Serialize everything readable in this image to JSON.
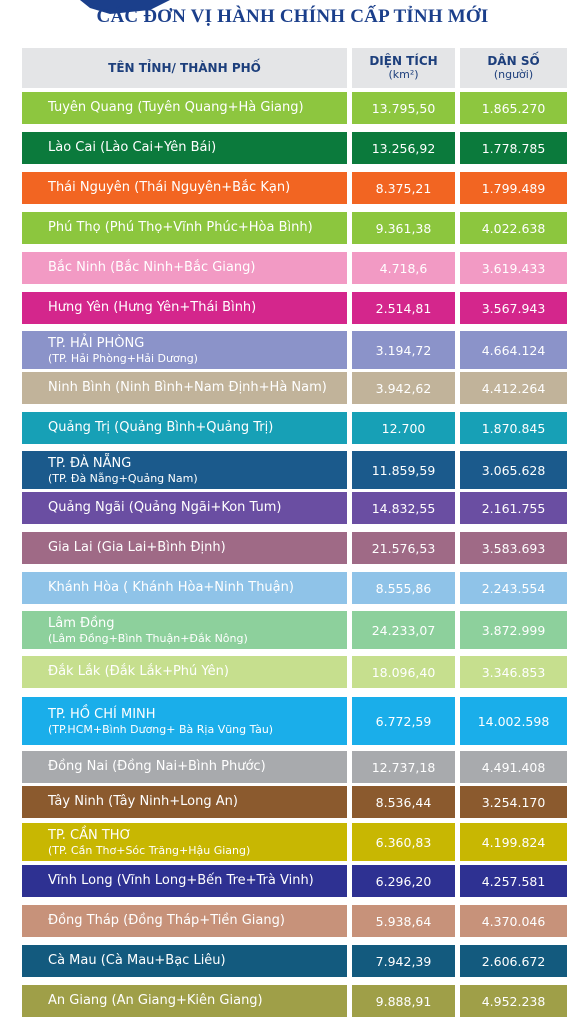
{
  "header": {
    "title": "CÁC ĐƠN VỊ HÀNH CHÍNH CẤP TỈNH MỚI"
  },
  "table": {
    "headers": [
      "TÊN TỈNH/ THÀNH PHỐ",
      "DIỆN TÍCH",
      "DÂN SỐ"
    ],
    "header_units": [
      "(km²)",
      "(người)"
    ],
    "rows": [
      {
        "name": "Tuyên Quang (Tuyên Quang+Hà Giang)",
        "area": "13.795,50",
        "population": "1.865.270",
        "color": "#8dc63f"
      },
      {
        "name": "Lào Cai (Lào Cai+Yên Bái)",
        "area": "13.256,92",
        "population": "1.778.785",
        "color": "#0b7a3c"
      },
      {
        "name": "Thái Nguyên (Thái Nguyên+Bắc Kạn)",
        "area": "8.375,21",
        "population": "1.799.489",
        "color": "#f26522"
      },
      {
        "name": "Phú Thọ (Phú Thọ+Vĩnh Phúc+Hòa Bình)",
        "area": "9.361,38",
        "population": "4.022.638",
        "color": "#8cc63e"
      },
      {
        "name": "Bắc Ninh (Bắc Ninh+Bắc Giang)",
        "area": "4.718,6",
        "population": "3.619.433",
        "color": "#f29ac4"
      },
      {
        "name": "Hưng Yên (Hưng Yên+Thái Bình)",
        "area": "2.514,81",
        "population": "3.567.943",
        "color": "#d4268c"
      },
      {
        "name": "TP. HẢI PHÒNG",
        "sub": "(TP. Hải Phòng+Hải Dương)",
        "area": "3.194,72",
        "population": "4.664.124",
        "color": "#8b93c9"
      },
      {
        "name": "Ninh Bình (Ninh Bình+Nam Định+Hà Nam)",
        "area": "3.942,62",
        "population": "4.412.264",
        "color": "#c1b39a"
      },
      {
        "name": "Quảng Trị (Quảng Bình+Quảng Trị)",
        "area": "12.700",
        "population": "1.870.845",
        "color": "#17a0b6"
      },
      {
        "name": "TP. ĐÀ NẴNG",
        "sub": "(TP. Đà Nẵng+Quảng Nam)",
        "area": "11.859,59",
        "population": "3.065.628",
        "color": "#1b5a8c"
      },
      {
        "name": "Quảng Ngãi (Quảng Ngãi+Kon Tum)",
        "area": "14.832,55",
        "population": "2.161.755",
        "color": "#6a4ea2"
      },
      {
        "name": "Gia Lai (Gia Lai+Bình Định)",
        "area": "21.576,53",
        "population": "3.583.693",
        "color": "#9f6a86"
      },
      {
        "name": "Khánh Hòa ( Khánh Hòa+Ninh Thuận)",
        "area": "8.555,86",
        "population": "2.243.554",
        "color": "#8fc3e8"
      },
      {
        "name": "Lâm Đồng",
        "sub": "(Lâm Đồng+Bình Thuận+Đắk Nông)",
        "area": "24.233,07",
        "population": "3.872.999",
        "color": "#8dd09c"
      },
      {
        "name": "Đắk Lắk (Đắk Lắk+Phú Yên)",
        "area": "18.096,40",
        "population": "3.346.853",
        "color": "#c6df8e"
      },
      {
        "name": "TP. HỒ CHÍ MINH",
        "sub": "(TP.HCM+Bình Dương+ Bà Rịa Vũng Tàu)",
        "area": "6.772,59",
        "population": "14.002.598",
        "color": "#1aaeea"
      },
      {
        "name": "Đồng Nai (Đồng Nai+Bình Phước)",
        "area": "12.737,18",
        "population": "4.491.408",
        "color": "#a8aaad"
      },
      {
        "name": "Tây Ninh (Tây Ninh+Long An)",
        "area": "8.536,44",
        "population": "3.254.170",
        "color": "#8b5a2e"
      },
      {
        "name": "TP. CẦN THƠ",
        "sub": "(TP. Cần Thơ+Sóc Trăng+Hậu Giang)",
        "area": "6.360,83",
        "population": "4.199.824",
        "color": "#c8b702"
      },
      {
        "name": "Vĩnh Long (Vĩnh Long+Bến Tre+Trà Vinh)",
        "area": "6.296,20",
        "population": "4.257.581",
        "color": "#2e3192"
      },
      {
        "name": "Đồng Tháp (Đồng Tháp+Tiền Giang)",
        "area": "5.938,64",
        "population": "4.370.046",
        "color": "#c7927a"
      },
      {
        "name": "Cà Mau (Cà Mau+Bạc Liêu)",
        "area": "7.942,39",
        "population": "2.606.672",
        "color": "#135a7e"
      },
      {
        "name": "An Giang (An Giang+Kiên Giang)",
        "area": "9.888,91",
        "population": "4.952.238",
        "color": "#9f9f48"
      }
    ]
  }
}
